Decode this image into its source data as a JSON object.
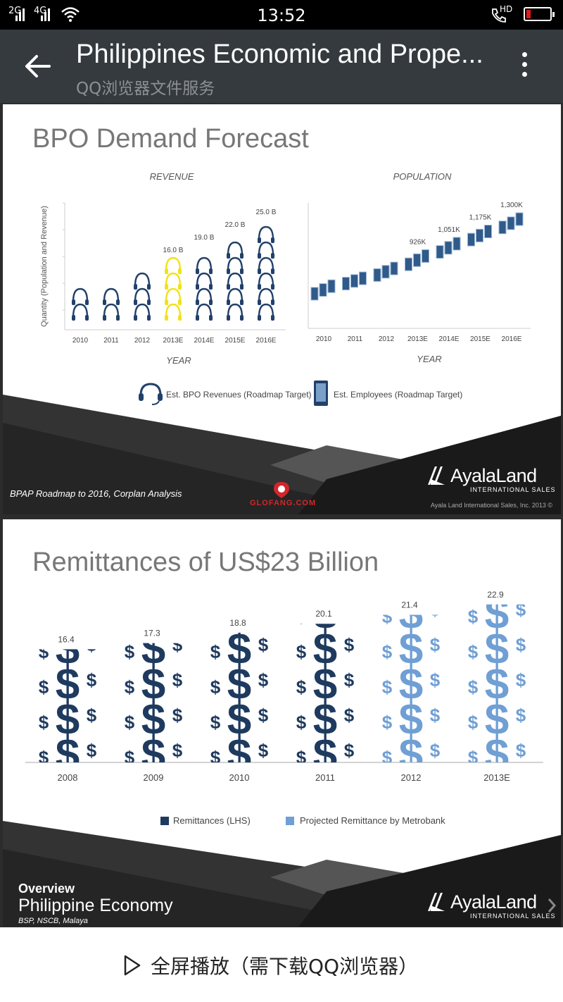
{
  "status_bar": {
    "sim1": "2G",
    "sim2": "4G",
    "time": "13:52",
    "call_label": "HD",
    "icons": [
      "signal-icon",
      "wifi-icon",
      "hd-call-icon",
      "battery-low-icon"
    ]
  },
  "app_bar": {
    "title": "Philippines Economic and Prope...",
    "subtitle": "QQ浏览器文件服务",
    "icons": [
      "back-arrow-icon",
      "more-vert-icon"
    ]
  },
  "slide1": {
    "title": "BPO Demand Forecast",
    "source": "BPAP Roadmap to 2016, Corplan Analysis",
    "logo_name": "AyalaLand",
    "logo_sub": "INTERNATIONAL SALES",
    "copyright": "Ayala Land International Sales, Inc. 2013 ©",
    "legend": [
      "Est. BPO Revenues (Roadmap Target)",
      "Est. Employees (Roadmap Target)"
    ],
    "watermark": "GLOFANG.COM"
  },
  "slide2": {
    "title": "Remittances of US$23 Billion",
    "overview": "Overview",
    "section": "Philippine Economy",
    "source": "BSP, NSCB, Malaya",
    "logo_name": "AyalaLand",
    "logo_sub": "INTERNATIONAL SALES",
    "legend": [
      "Remittances (LHS)",
      "Projected Remittance by Metrobank"
    ]
  },
  "bottom_bar": {
    "fullscreen_label": "全屏播放（需下载QQ浏览器）",
    "icons": [
      "play-icon"
    ]
  },
  "chart_data": [
    {
      "type": "bar",
      "title": "REVENUE",
      "ylabel": "Quantity (Population and Revenue)",
      "xlabel": "YEAR",
      "categories": [
        "2010",
        "2011",
        "2012",
        "2013E",
        "2014E",
        "2015E",
        "2016E"
      ],
      "values": [
        9,
        11,
        13,
        16,
        19,
        22,
        25
      ],
      "data_labels": [
        "",
        "",
        "",
        "16.0 B",
        "19.0 B",
        "22.0 B",
        "25.0 B"
      ],
      "units": "B",
      "highlight": "2013E",
      "colors": {
        "main": "#21416b",
        "highlight": "#f1e21a"
      }
    },
    {
      "type": "bar",
      "title": "POPULATION",
      "xlabel": "YEAR",
      "categories": [
        "2010",
        "2011",
        "2012",
        "2013E",
        "2014E",
        "2015E",
        "2016E"
      ],
      "values": [
        620,
        700,
        800,
        926,
        1051,
        1175,
        1300
      ],
      "data_labels": [
        "",
        "",
        "",
        "926K",
        "1,051K",
        "1,175K",
        "1,300K"
      ],
      "units": "K",
      "colors": {
        "main": "#2f5a8a"
      }
    },
    {
      "type": "bar",
      "title": "",
      "categories": [
        "2008",
        "2009",
        "2010",
        "2011",
        "2012",
        "2013E"
      ],
      "values": [
        16.4,
        17.3,
        18.8,
        20.1,
        21.4,
        22.9
      ],
      "series_type": [
        "actual",
        "actual",
        "actual",
        "actual",
        "projected",
        "projected"
      ],
      "ylim": [
        0,
        24
      ],
      "colors": {
        "actual": "#1e3a5f",
        "projected": "#6f9fd4"
      }
    }
  ]
}
